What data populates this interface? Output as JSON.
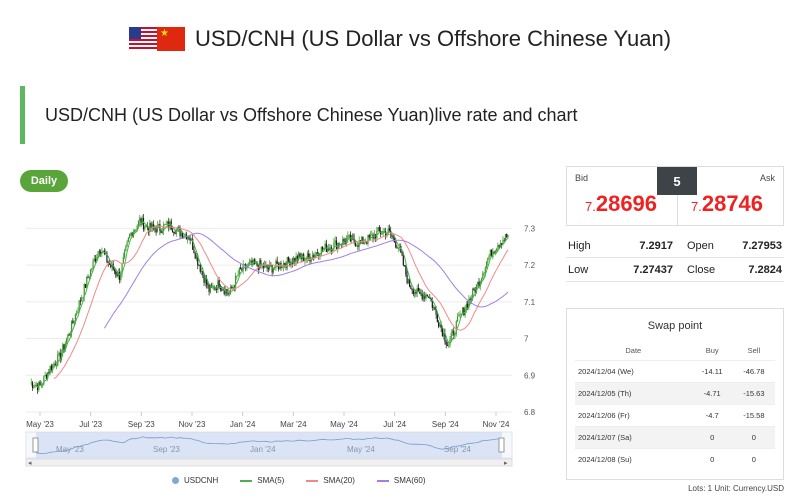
{
  "page": {
    "title": "USD/CNH (US Dollar vs Offshore Chinese Yuan)",
    "subtitle": "USD/CNH (US Dollar vs Offshore Chinese Yuan)live rate and chart",
    "timeframe_button": "Daily"
  },
  "quote": {
    "bid_label": "Bid",
    "ask_label": "Ask",
    "spread": "5",
    "bid_prefix": "7.",
    "bid_main": "28696",
    "ask_prefix": "7.",
    "ask_main": "28746"
  },
  "stats": {
    "high_label": "High",
    "high": "7.2917",
    "open_label": "Open",
    "open": "7.27953",
    "low_label": "Low",
    "low": "7.27437",
    "close_label": "Close",
    "close": "7.2824"
  },
  "swap": {
    "title": "Swap point",
    "headers": [
      "Date",
      "Buy",
      "Sell"
    ],
    "rows": [
      [
        "2024/12/04 (We)",
        "-14.11",
        "-46.78"
      ],
      [
        "2024/12/05 (Th)",
        "-4.71",
        "-15.63"
      ],
      [
        "2024/12/06 (Fr)",
        "-4.7",
        "-15.58"
      ],
      [
        "2024/12/07 (Sa)",
        "0",
        "0"
      ],
      [
        "2024/12/08 (Su)",
        "0",
        "0"
      ]
    ],
    "footnote": "Lots: 1 Unit: Currency.USD"
  },
  "legend": [
    "USDCNH",
    "SMA(5)",
    "SMA(20)",
    "SMA(60)"
  ],
  "colors": {
    "up": "#3c9a28",
    "down": "#1a1a1a",
    "sma5": "#4caf50",
    "sma20": "#f08a8a",
    "sma60": "#a47fe0",
    "accent": "#5aa53a",
    "price": "#e22222"
  },
  "chart_data": {
    "type": "line",
    "series_name": "USDCNH",
    "x": [
      "May '23",
      "Jul '23",
      "Sep '23",
      "Nov '23",
      "Jan '24",
      "Mar '24",
      "May '24",
      "Jul '24",
      "Sep '24",
      "Nov '24"
    ],
    "y_ticks": [
      "7.3",
      "7.2",
      "7.1",
      "7",
      "6.9",
      "6.8"
    ],
    "ylim": [
      6.8,
      7.35
    ],
    "navigator_labels": [
      "May '23",
      "Sep '23",
      "Jan '24",
      "May '24",
      "Sep '24"
    ],
    "close_path": [
      6.88,
      6.87,
      6.92,
      6.95,
      7.02,
      7.1,
      7.18,
      7.25,
      7.2,
      7.17,
      7.28,
      7.32,
      7.3,
      7.3,
      7.31,
      7.29,
      7.28,
      7.2,
      7.13,
      7.15,
      7.12,
      7.18,
      7.2,
      7.2,
      7.19,
      7.2,
      7.21,
      7.22,
      7.22,
      7.24,
      7.25,
      7.26,
      7.27,
      7.26,
      7.27,
      7.29,
      7.29,
      7.25,
      7.15,
      7.12,
      7.12,
      7.05,
      6.98,
      7.05,
      7.1,
      7.15,
      7.22,
      7.26,
      7.28
    ]
  }
}
